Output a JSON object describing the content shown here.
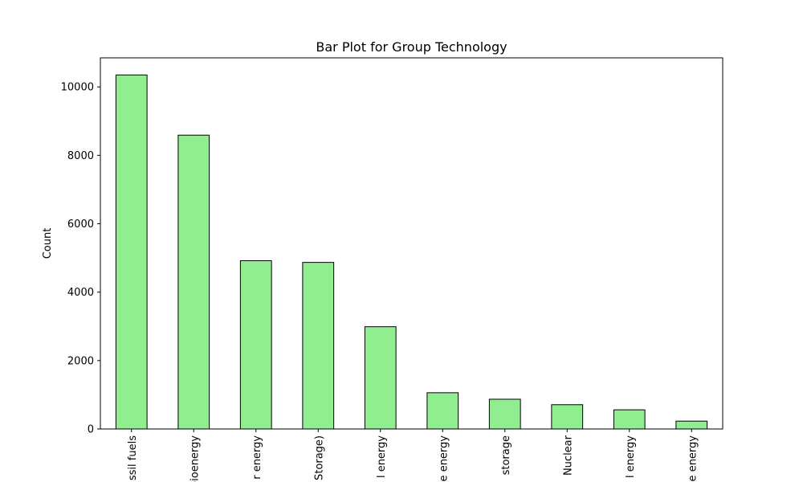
{
  "chart_data": {
    "type": "bar",
    "title": "Bar Plot for Group Technology",
    "xlabel": "",
    "ylabel": "Count",
    "ylim": [
      0,
      10850
    ],
    "yticks": [
      0,
      2000,
      4000,
      6000,
      8000,
      10000
    ],
    "categories": [
      "ssil fuels",
      "bioenergy",
      "r energy",
      "Storage)",
      "l energy",
      "e energy",
      "storage",
      "Nuclear",
      "l energy",
      "e energy"
    ],
    "values": [
      10350,
      8590,
      4920,
      4870,
      2990,
      1060,
      870,
      710,
      560,
      230
    ],
    "bar_color": "#90ee90",
    "edge_color": "#000000",
    "grid": false,
    "legend": "none"
  }
}
